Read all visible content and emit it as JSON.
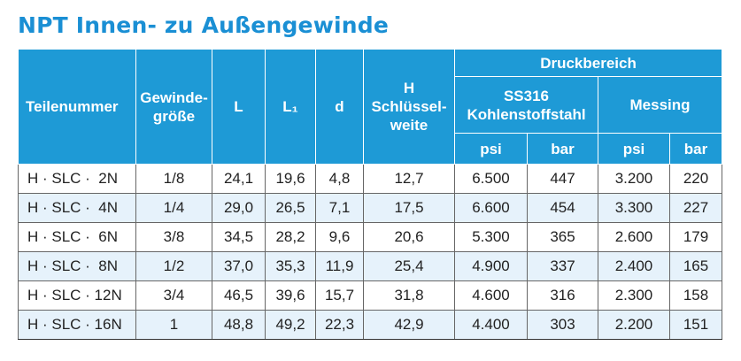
{
  "title": "NPT Innen- zu Außengewinde",
  "header": {
    "part_number": "Teilenummer",
    "thread_size": "Gewinde-\ngröße",
    "L": "L",
    "L1": "L₁",
    "d": "d",
    "wrench": "H\nSchlüssel-\nweite",
    "pressure": "Druckbereich",
    "ss316": "SS316\nKohlenstoffstahl",
    "brass": "Messing",
    "ss316_units": [
      "psi",
      "bar"
    ],
    "brass_units": [
      "psi",
      "bar"
    ]
  },
  "table": {
    "rows": [
      [
        "H · SLC ·  2N",
        "1/8",
        "24,1",
        "19,6",
        "4,8",
        "12,7",
        "6.500",
        "447",
        "3.200",
        "220"
      ],
      [
        "H · SLC ·  4N",
        "1/4",
        "29,0",
        "26,5",
        "7,1",
        "17,5",
        "6.600",
        "454",
        "3.300",
        "227"
      ],
      [
        "H · SLC ·  6N",
        "3/8",
        "34,5",
        "28,2",
        "9,6",
        "20,6",
        "5.300",
        "365",
        "2.600",
        "179"
      ],
      [
        "H · SLC ·  8N",
        "1/2",
        "37,0",
        "35,3",
        "11,9",
        "25,4",
        "4.900",
        "337",
        "2.400",
        "165"
      ],
      [
        "H · SLC · 12N",
        "3/4",
        "46,5",
        "39,6",
        "15,7",
        "31,8",
        "4.600",
        "316",
        "2.300",
        "158"
      ],
      [
        "H · SLC · 16N",
        "1",
        "48,8",
        "49,2",
        "22,3",
        "42,9",
        "4.400",
        "303",
        "2.200",
        "151"
      ]
    ]
  }
}
